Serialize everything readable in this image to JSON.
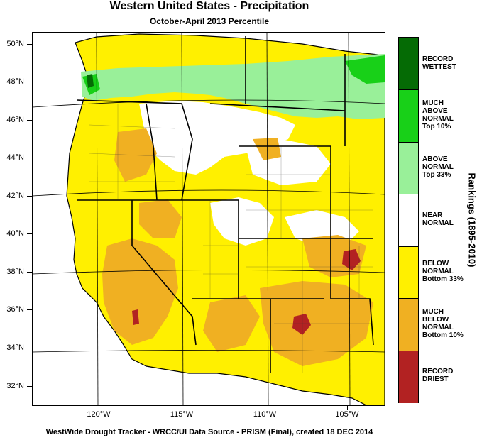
{
  "title": "Western United States - Precipitation",
  "subtitle": "October-April 2013 Percentile",
  "footer": "WestWide Drought Tracker - WRCC/UI  Data Source - PRISM (Final), created 18 DEC 2014",
  "axes": {
    "lat_labels": [
      "50°N",
      "48°N",
      "46°N",
      "44°N",
      "42°N",
      "40°N",
      "38°N",
      "36°N",
      "34°N",
      "32°N"
    ],
    "lon_labels": [
      "120°W",
      "115°W",
      "110°W",
      "105°W"
    ]
  },
  "legend": {
    "title": "Rankings (1895-2010)",
    "classes": [
      {
        "label": [
          "RECORD",
          "WETTEST"
        ],
        "color": "#056b05"
      },
      {
        "label": [
          "MUCH",
          "ABOVE",
          "NORMAL",
          "Top 10%"
        ],
        "color": "#18d018"
      },
      {
        "label": [
          "ABOVE",
          "NORMAL",
          "Top 33%"
        ],
        "color": "#99f099"
      },
      {
        "label": [
          "NEAR",
          "NORMAL"
        ],
        "color": "#ffffff"
      },
      {
        "label": [
          "BELOW",
          "NORMAL",
          "Bottom 33%"
        ],
        "color": "#fff000"
      },
      {
        "label": [
          "MUCH",
          "BELOW",
          "NORMAL",
          "Bottom 10%"
        ],
        "color": "#f0b022"
      },
      {
        "label": [
          "RECORD",
          "DRIEST"
        ],
        "color": "#b22222"
      }
    ]
  }
}
